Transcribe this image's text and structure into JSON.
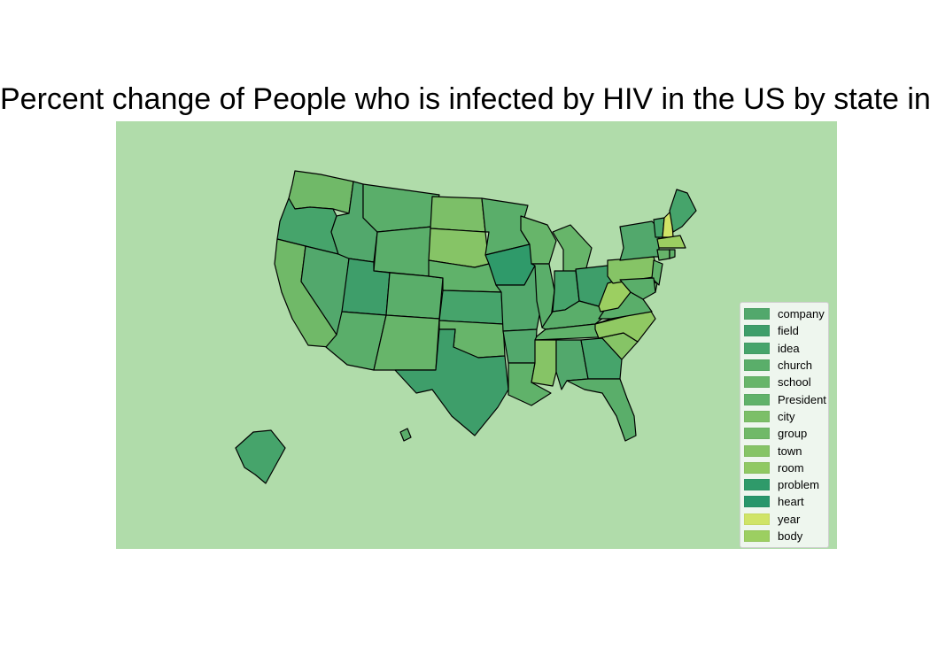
{
  "title": "Percent change of People who is infected by HIV in the US by state in",
  "colors": {
    "ocean": "#b0dcaa",
    "border": "#000000"
  },
  "legend": {
    "items": [
      {
        "label": "company",
        "color": "#52a86c"
      },
      {
        "label": "field",
        "color": "#3e9e6a"
      },
      {
        "label": "idea",
        "color": "#46a46b"
      },
      {
        "label": "church",
        "color": "#5aae6a"
      },
      {
        "label": "school",
        "color": "#67b56a"
      },
      {
        "label": "President",
        "color": "#60b26a"
      },
      {
        "label": "city",
        "color": "#7cbf68"
      },
      {
        "label": "group",
        "color": "#70b968"
      },
      {
        "label": "town",
        "color": "#86c466"
      },
      {
        "label": "room",
        "color": "#90c963"
      },
      {
        "label": "problem",
        "color": "#2f9a6a"
      },
      {
        "label": "heart",
        "color": "#28966b"
      },
      {
        "label": "year",
        "color": "#d0e467"
      },
      {
        "label": "body",
        "color": "#9ccf61"
      }
    ]
  },
  "states": [
    {
      "name": "WA",
      "color": "#70b968"
    },
    {
      "name": "OR",
      "color": "#46a46b"
    },
    {
      "name": "CA",
      "color": "#70b968"
    },
    {
      "name": "NV",
      "color": "#52a86c"
    },
    {
      "name": "ID",
      "color": "#52a86c"
    },
    {
      "name": "MT",
      "color": "#5aae6a"
    },
    {
      "name": "WY",
      "color": "#5aae6a"
    },
    {
      "name": "UT",
      "color": "#3e9e6a"
    },
    {
      "name": "AZ",
      "color": "#5aae6a"
    },
    {
      "name": "CO",
      "color": "#5aae6a"
    },
    {
      "name": "NM",
      "color": "#67b56a"
    },
    {
      "name": "ND",
      "color": "#7cbf68"
    },
    {
      "name": "SD",
      "color": "#86c466"
    },
    {
      "name": "NE",
      "color": "#60b26a"
    },
    {
      "name": "KS",
      "color": "#46a46b"
    },
    {
      "name": "OK",
      "color": "#67b56a"
    },
    {
      "name": "TX",
      "color": "#3e9e6a"
    },
    {
      "name": "MN",
      "color": "#5aae6a"
    },
    {
      "name": "IA",
      "color": "#2f9a6a"
    },
    {
      "name": "MO",
      "color": "#52a86c"
    },
    {
      "name": "AR",
      "color": "#52a86c"
    },
    {
      "name": "LA",
      "color": "#60b26a"
    },
    {
      "name": "WI",
      "color": "#67b56a"
    },
    {
      "name": "IL",
      "color": "#5aae6a"
    },
    {
      "name": "MI",
      "color": "#67b56a"
    },
    {
      "name": "IN",
      "color": "#46a46b"
    },
    {
      "name": "OH",
      "color": "#3e9e6a"
    },
    {
      "name": "KY",
      "color": "#5aae6a"
    },
    {
      "name": "TN",
      "color": "#60b26a"
    },
    {
      "name": "MS",
      "color": "#86c466"
    },
    {
      "name": "AL",
      "color": "#52a86c"
    },
    {
      "name": "GA",
      "color": "#46a46b"
    },
    {
      "name": "FL",
      "color": "#5aae6a"
    },
    {
      "name": "SC",
      "color": "#86c466"
    },
    {
      "name": "NC",
      "color": "#90c963"
    },
    {
      "name": "VA",
      "color": "#5aae6a"
    },
    {
      "name": "WV",
      "color": "#9ccf61"
    },
    {
      "name": "PA",
      "color": "#86c466"
    },
    {
      "name": "NY",
      "color": "#52a86c"
    },
    {
      "name": "NJ",
      "color": "#60b26a"
    },
    {
      "name": "DE",
      "color": "#67b56a"
    },
    {
      "name": "MD",
      "color": "#5aae6a"
    },
    {
      "name": "VT",
      "color": "#46a46b"
    },
    {
      "name": "NH",
      "color": "#d0e467"
    },
    {
      "name": "ME",
      "color": "#46a46b"
    },
    {
      "name": "MA",
      "color": "#9ccf61"
    },
    {
      "name": "CT",
      "color": "#67b56a"
    },
    {
      "name": "RI",
      "color": "#60b26a"
    },
    {
      "name": "AK",
      "color": "#46a46b"
    },
    {
      "name": "HI",
      "color": "#5aae6a"
    }
  ]
}
